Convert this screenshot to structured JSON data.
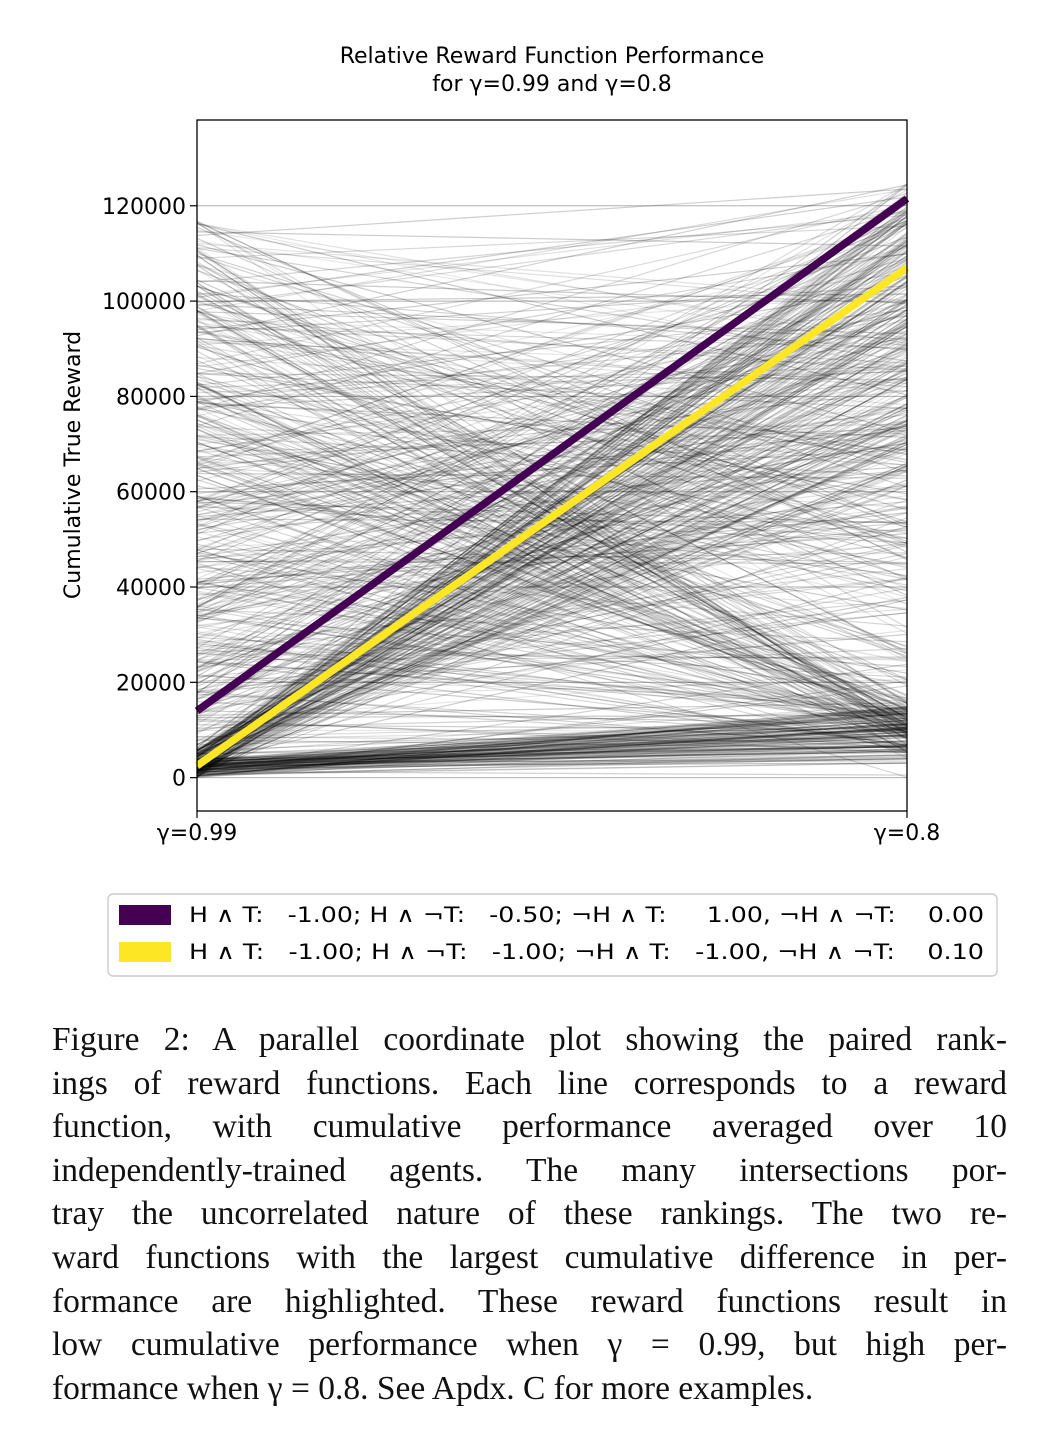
{
  "chart_data": {
    "type": "parallel-coordinates",
    "title_line1": "Relative Reward Function Performance",
    "title_line2": "for γ=0.99 and γ=0.8",
    "ylabel": "Cumulative True Reward",
    "axes": [
      "γ=0.99",
      "γ=0.8"
    ],
    "ylim": [
      -7000,
      138000
    ],
    "yticks": [
      0,
      20000,
      40000,
      60000,
      80000,
      100000,
      120000
    ],
    "ytick_labels": [
      "0",
      "20000",
      "40000",
      "60000",
      "80000",
      "100000",
      "120000"
    ],
    "grid": true,
    "background_lines": {
      "count": 700,
      "color": "#000000",
      "note_values": "many reward functions, start 0–123000 at γ=0.99, end 0–131000 at γ=0.8"
    },
    "highlighted": [
      {
        "name": "H ∧ T:   -1.00; H ∧ ¬T:   -0.50; ¬H ∧ T:     1.00, ¬H ∧ ¬T:    0.00",
        "color": "#440154",
        "values": [
          14000,
          121500
        ]
      },
      {
        "name": "H ∧ T:   -1.00; H ∧ ¬T:   -1.00; ¬H ∧ T:   -1.00, ¬H ∧ ¬T:    0.10",
        "color": "#fde725",
        "values": [
          2500,
          107000
        ]
      }
    ],
    "legend_placement": "below"
  },
  "caption": {
    "lines": [
      "Figure 2: A parallel coordinate plot showing the paired rank-",
      "ings of reward functions. Each line corresponds to a reward",
      "function, with cumulative performance averaged over 10",
      "independently-trained agents. The many intersections por-",
      "tray the uncorrelated nature of these rankings. The two re-",
      "ward functions with the largest cumulative difference in per-",
      "formance are highlighted. These reward functions result in",
      "low cumulative performance when γ = 0.99, but high per-",
      "formance when γ = 0.8. See Apdx. C for more examples."
    ]
  }
}
